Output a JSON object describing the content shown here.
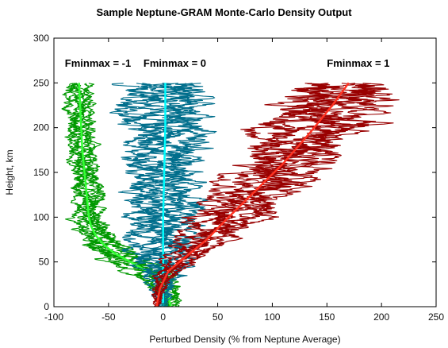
{
  "chart_data": {
    "type": "scatter",
    "title": "Sample Neptune-GRAM Monte-Carlo Density Output",
    "xlabel": "Perturbed Density (% from Neptune Average)",
    "ylabel": "Height, km",
    "xlim": [
      -100,
      250
    ],
    "ylim": [
      0,
      300
    ],
    "xticks": [
      -100,
      -50,
      0,
      50,
      100,
      150,
      200,
      250
    ],
    "yticks": [
      0,
      50,
      100,
      150,
      200,
      250,
      300
    ],
    "grid": false,
    "annotations": [
      {
        "text": "Fminmax = -1",
        "x": -90,
        "y": 268
      },
      {
        "text": "Fminmax = 0",
        "x": -18,
        "y": 268
      },
      {
        "text": "Fminmax = 1",
        "x": 150,
        "y": 268
      }
    ],
    "series": [
      {
        "color": "#009900",
        "center_color": "#33ff33",
        "mean": [
          [
            7,
            0
          ],
          [
            5,
            10
          ],
          [
            2,
            20
          ],
          [
            -5,
            30
          ],
          [
            -15,
            40
          ],
          [
            -30,
            50
          ],
          [
            -45,
            60
          ],
          [
            -55,
            70
          ],
          [
            -62,
            80
          ],
          [
            -66,
            90
          ],
          [
            -68,
            100
          ],
          [
            -70,
            125
          ],
          [
            -72,
            150
          ],
          [
            -74,
            175
          ],
          [
            -75,
            200
          ],
          [
            -76,
            225
          ],
          [
            -77,
            250
          ]
        ],
        "spread": [
          [
            0,
            8
          ],
          [
            50,
            22
          ],
          [
            100,
            14
          ],
          [
            250,
            10
          ]
        ]
      },
      {
        "color": "#006e8c",
        "center_color": "#00ffff",
        "mean": [
          [
            0,
            0
          ],
          [
            0,
            50
          ],
          [
            0,
            100
          ],
          [
            1,
            150
          ],
          [
            2,
            200
          ],
          [
            2,
            250
          ]
        ],
        "spread": [
          [
            0,
            3
          ],
          [
            20,
            12
          ],
          [
            50,
            25
          ],
          [
            100,
            30
          ],
          [
            250,
            40
          ]
        ]
      },
      {
        "color": "#990000",
        "center_color": "#ff3322",
        "mean": [
          [
            -6,
            0
          ],
          [
            -3,
            20
          ],
          [
            5,
            40
          ],
          [
            20,
            55
          ],
          [
            40,
            75
          ],
          [
            60,
            100
          ],
          [
            85,
            130
          ],
          [
            110,
            160
          ],
          [
            135,
            195
          ],
          [
            155,
            225
          ],
          [
            170,
            250
          ]
        ],
        "spread": [
          [
            0,
            3
          ],
          [
            40,
            10
          ],
          [
            100,
            32
          ],
          [
            200,
            48
          ],
          [
            250,
            52
          ]
        ]
      }
    ]
  }
}
